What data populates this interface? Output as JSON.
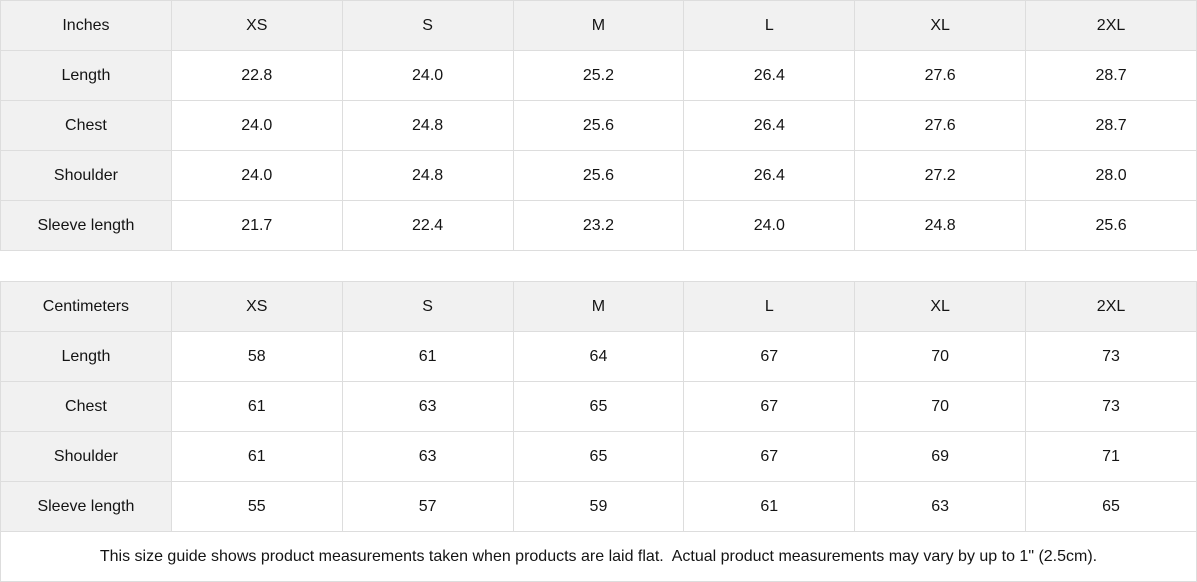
{
  "tables": [
    {
      "unit_label": "Inches",
      "sizes": [
        "XS",
        "S",
        "M",
        "L",
        "XL",
        "2XL"
      ],
      "rows": [
        {
          "label": "Length",
          "values": [
            "22.8",
            "24.0",
            "25.2",
            "26.4",
            "27.6",
            "28.7"
          ]
        },
        {
          "label": "Chest",
          "values": [
            "24.0",
            "24.8",
            "25.6",
            "26.4",
            "27.6",
            "28.7"
          ]
        },
        {
          "label": "Shoulder",
          "values": [
            "24.0",
            "24.8",
            "25.6",
            "26.4",
            "27.2",
            "28.0"
          ]
        },
        {
          "label": "Sleeve length",
          "values": [
            "21.7",
            "22.4",
            "23.2",
            "24.0",
            "24.8",
            "25.6"
          ]
        }
      ]
    },
    {
      "unit_label": "Centimeters",
      "sizes": [
        "XS",
        "S",
        "M",
        "L",
        "XL",
        "2XL"
      ],
      "rows": [
        {
          "label": "Length",
          "values": [
            "58",
            "61",
            "64",
            "67",
            "70",
            "73"
          ]
        },
        {
          "label": "Chest",
          "values": [
            "61",
            "63",
            "65",
            "67",
            "70",
            "73"
          ]
        },
        {
          "label": "Shoulder",
          "values": [
            "61",
            "63",
            "65",
            "67",
            "69",
            "71"
          ]
        },
        {
          "label": "Sleeve length",
          "values": [
            "55",
            "57",
            "59",
            "61",
            "63",
            "65"
          ]
        }
      ]
    }
  ],
  "footer": {
    "note": "This size guide shows product measurements taken when products are laid flat.  Actual product measurements may vary by up to 1\" (2.5cm)."
  },
  "colors": {
    "header_bg": "#f1f1f1",
    "border": "#dddddd",
    "text": "#141414",
    "background": "#ffffff"
  }
}
